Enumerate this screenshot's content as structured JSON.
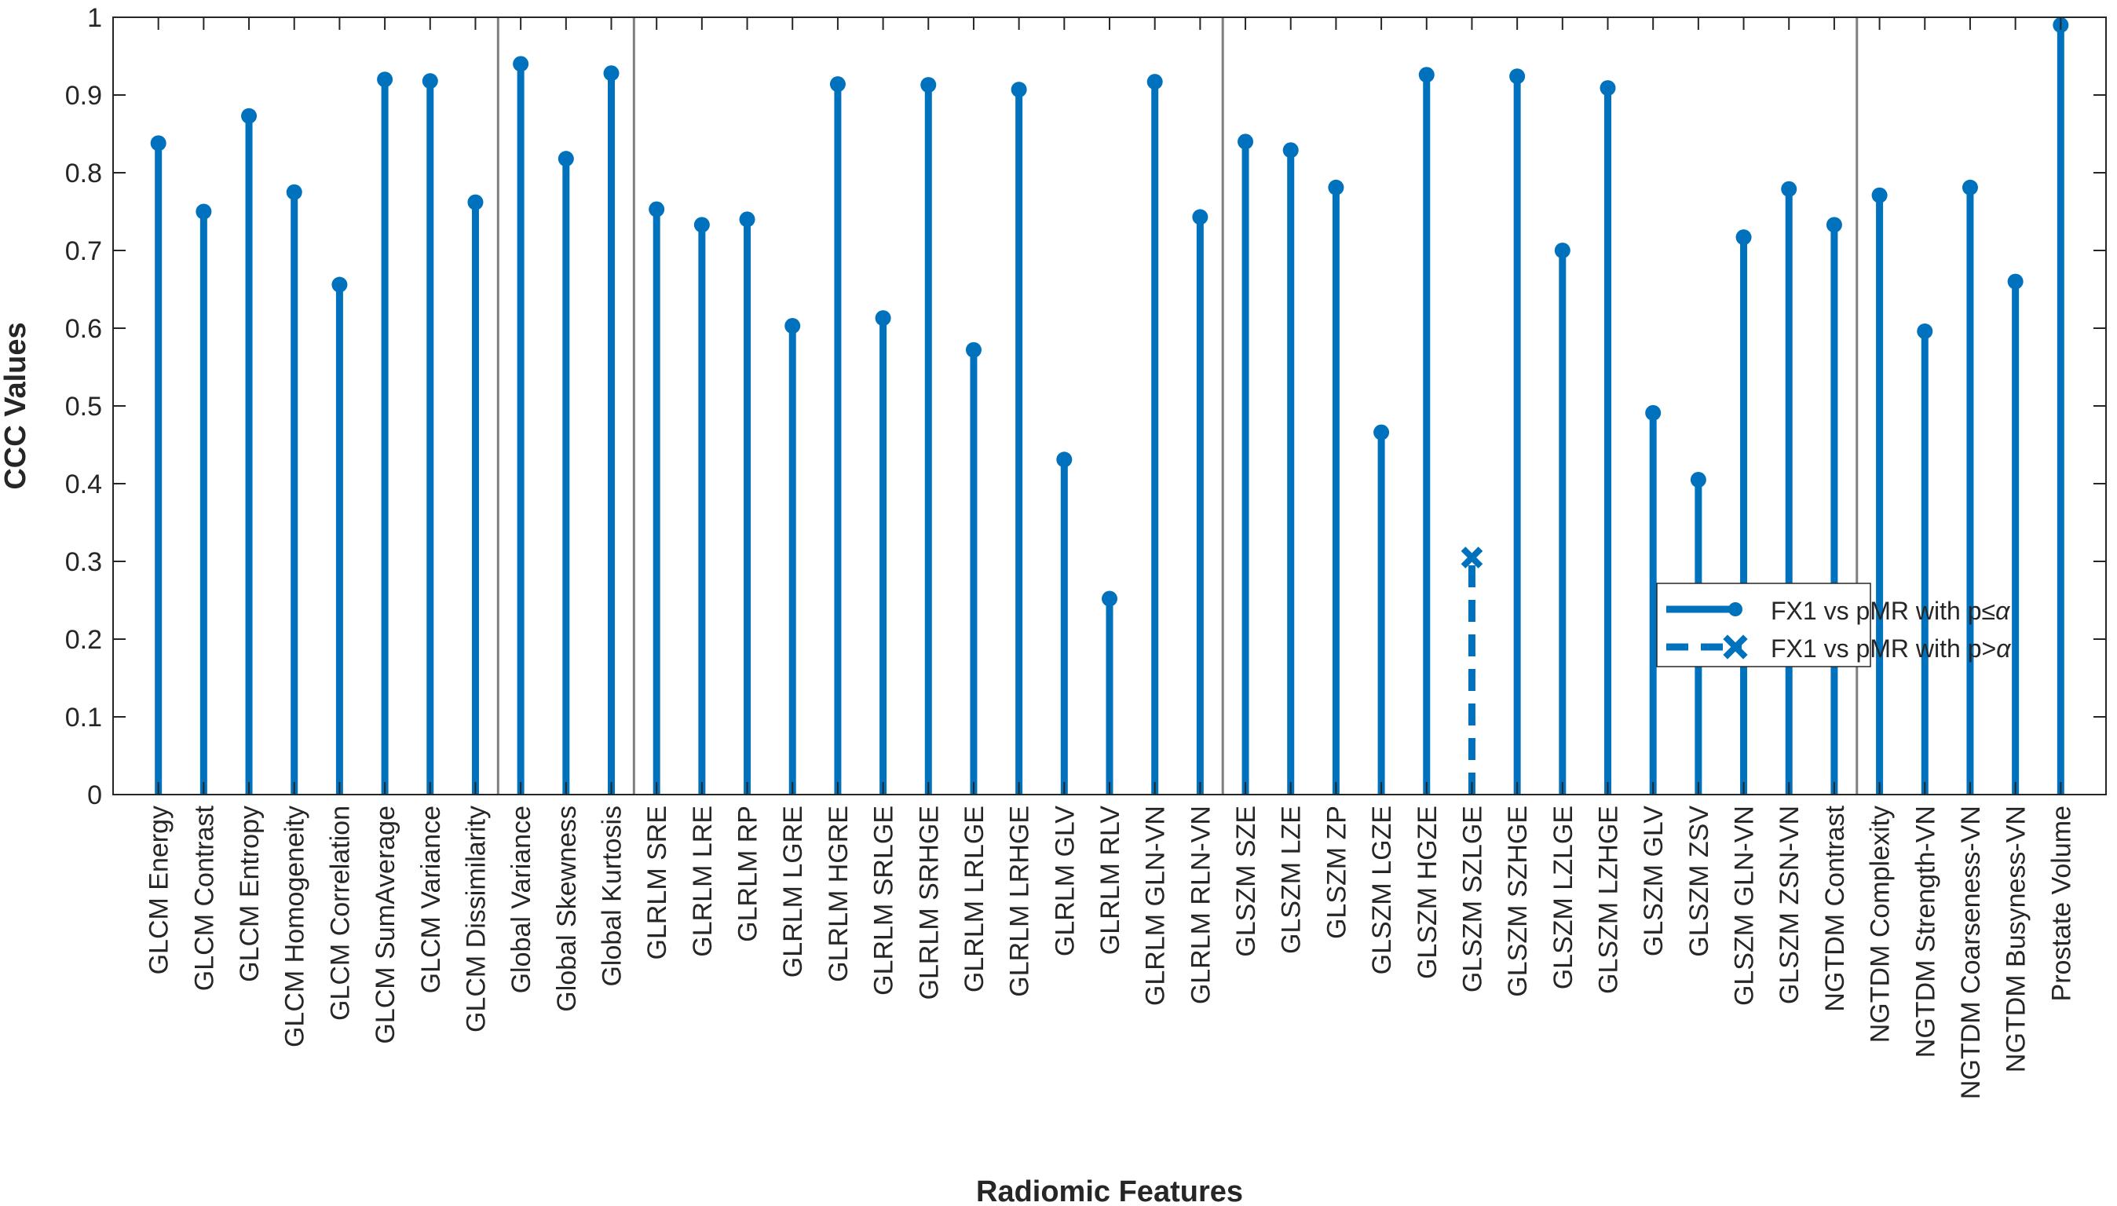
{
  "chart_data": {
    "type": "stem",
    "xlabel": "Radiomic Features",
    "ylabel": "CCC Values",
    "ylim": [
      0,
      1
    ],
    "yticks": [
      0,
      0.1,
      0.2,
      0.3,
      0.4,
      0.5,
      0.6,
      0.7,
      0.8,
      0.9,
      1
    ],
    "ytick_labels": [
      "0",
      "0.1",
      "0.2",
      "0.3",
      "0.4",
      "0.5",
      "0.6",
      "0.7",
      "0.8",
      "0.9",
      "1"
    ],
    "grid": false,
    "legend_position": "right",
    "group_separators_after": [
      8,
      11,
      24,
      38
    ],
    "colors": {
      "series": "#0072BD",
      "separator": "#7f7f7f",
      "axis": "#262626"
    },
    "categories": [
      "GLCM Energy",
      "GLCM Contrast",
      "GLCM Entropy",
      "GLCM Homogeneity",
      "GLCM Correlation",
      "GLCM SumAverage",
      "GLCM Variance",
      "GLCM Dissimilarity",
      "Global Variance",
      "Global Skewness",
      "Global Kurtosis",
      "GLRLM SRE",
      "GLRLM LRE",
      "GLRLM RP",
      "GLRLM LGRE",
      "GLRLM HGRE",
      "GLRLM SRLGE",
      "GLRLM SRHGE",
      "GLRLM LRLGE",
      "GLRLM LRHGE",
      "GLRLM GLV",
      "GLRLM RLV",
      "GLRLM GLN-VN",
      "GLRLM RLN-VN",
      "GLSZM SZE",
      "GLSZM LZE",
      "GLSZM ZP",
      "GLSZM LGZE",
      "GLSZM HGZE",
      "GLSZM SZLGE",
      "GLSZM SZHGE",
      "GLSZM LZLGE",
      "GLSZM LZHGE",
      "GLSZM GLV",
      "GLSZM ZSV",
      "GLSZM GLN-VN",
      "GLSZM ZSN-VN",
      "NGTDM Contrast",
      "NGTDM Complexity",
      "NGTDM Strength-VN",
      "NGTDM Coarseness-VN",
      "NGTDM Busyness-VN",
      "Prostate Volume"
    ],
    "values": [
      0.838,
      0.75,
      0.873,
      0.775,
      0.656,
      0.92,
      0.918,
      0.762,
      0.94,
      0.818,
      0.928,
      0.753,
      0.733,
      0.74,
      0.603,
      0.914,
      0.613,
      0.913,
      0.572,
      0.907,
      0.431,
      0.252,
      0.917,
      0.743,
      0.84,
      0.829,
      0.781,
      0.466,
      0.926,
      0.305,
      0.924,
      0.7,
      0.909,
      0.491,
      0.405,
      0.717,
      0.779,
      0.733,
      0.771,
      0.596,
      0.781,
      0.66,
      0.99
    ],
    "significant": [
      true,
      true,
      true,
      true,
      true,
      true,
      true,
      true,
      true,
      true,
      true,
      true,
      true,
      true,
      true,
      true,
      true,
      true,
      true,
      true,
      true,
      true,
      true,
      true,
      true,
      true,
      true,
      true,
      true,
      false,
      true,
      true,
      true,
      true,
      true,
      true,
      true,
      true,
      true,
      true,
      true,
      true,
      true
    ],
    "series": [
      {
        "name_prefix": "FX1 vs pMR with p",
        "name_op": "≤",
        "name_suffix": "α",
        "style": "solid",
        "marker": "circle"
      },
      {
        "name_prefix": "FX1 vs pMR with p",
        "name_op": ">",
        "name_suffix": "α",
        "style": "dashed",
        "marker": "x"
      }
    ]
  }
}
